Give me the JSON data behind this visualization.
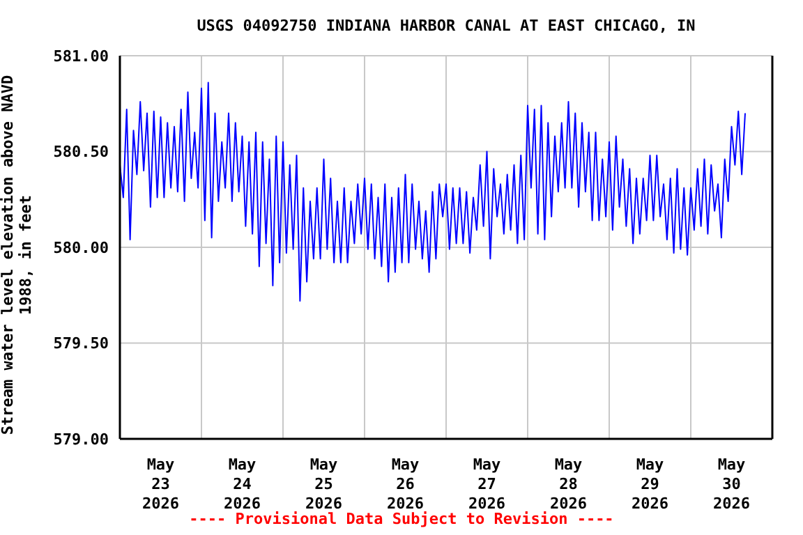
{
  "chart_data": {
    "type": "line",
    "title": "USGS 04092750 INDIANA HARBOR CANAL AT EAST CHICAGO, IN",
    "ylabel": "Stream water level elevation above NAVD 1988, in feet",
    "annotations": [
      "---- Provisional Data Subject to Revision ----"
    ],
    "xlim": [
      "2026-05-23T00:00",
      "2026-05-31T00:00"
    ],
    "xticks": [
      {
        "value": "2026-05-23T12:00",
        "label": "May\n23\n2026"
      },
      {
        "value": "2026-05-24T12:00",
        "label": "May\n24\n2026"
      },
      {
        "value": "2026-05-25T12:00",
        "label": "May\n25\n2026"
      },
      {
        "value": "2026-05-26T12:00",
        "label": "May\n26\n2026"
      },
      {
        "value": "2026-05-27T12:00",
        "label": "May\n27\n2026"
      },
      {
        "value": "2026-05-28T12:00",
        "label": "May\n28\n2026"
      },
      {
        "value": "2026-05-29T12:00",
        "label": "May\n29\n2026"
      },
      {
        "value": "2026-05-30T12:00",
        "label": "May\n30\n2026"
      },
      {
        "value": "2026-05-24T00:00",
        "label": null
      },
      {
        "value": "2026-05-25T00:00",
        "label": null
      },
      {
        "value": "2026-05-26T00:00",
        "label": null
      },
      {
        "value": "2026-05-27T00:00",
        "label": null
      },
      {
        "value": "2026-05-28T00:00",
        "label": null
      },
      {
        "value": "2026-05-29T00:00",
        "label": null
      },
      {
        "value": "2026-05-30T00:00",
        "label": null
      }
    ],
    "ylim": [
      579,
      581
    ],
    "yticks": [
      {
        "value": 579,
        "label": "579.00"
      },
      {
        "value": 579.5,
        "label": "579.50"
      },
      {
        "value": 580,
        "label": "580.00"
      },
      {
        "value": 580.5,
        "label": "580.50"
      },
      {
        "value": 581,
        "label": "581.00"
      }
    ],
    "grid": true,
    "marker": "none",
    "line_style": "solid",
    "x": [
      "2026-05-23T00:00",
      "2026-05-23T01:00",
      "2026-05-23T02:00",
      "2026-05-23T03:00",
      "2026-05-23T04:00",
      "2026-05-23T05:00",
      "2026-05-23T06:00",
      "2026-05-23T07:00",
      "2026-05-23T08:00",
      "2026-05-23T09:00",
      "2026-05-23T10:00",
      "2026-05-23T11:00",
      "2026-05-23T12:00",
      "2026-05-23T13:00",
      "2026-05-23T14:00",
      "2026-05-23T15:00",
      "2026-05-23T16:00",
      "2026-05-23T17:00",
      "2026-05-23T18:00",
      "2026-05-23T19:00",
      "2026-05-23T20:00",
      "2026-05-23T21:00",
      "2026-05-23T22:00",
      "2026-05-23T23:00",
      "2026-05-24T00:00",
      "2026-05-24T01:00",
      "2026-05-24T02:00",
      "2026-05-24T03:00",
      "2026-05-24T04:00",
      "2026-05-24T05:00",
      "2026-05-24T06:00",
      "2026-05-24T07:00",
      "2026-05-24T08:00",
      "2026-05-24T09:00",
      "2026-05-24T10:00",
      "2026-05-24T11:00",
      "2026-05-24T12:00",
      "2026-05-24T13:00",
      "2026-05-24T14:00",
      "2026-05-24T15:00",
      "2026-05-24T16:00",
      "2026-05-24T17:00",
      "2026-05-24T18:00",
      "2026-05-24T19:00",
      "2026-05-24T20:00",
      "2026-05-24T21:00",
      "2026-05-24T22:00",
      "2026-05-24T23:00",
      "2026-05-25T00:00",
      "2026-05-25T01:00",
      "2026-05-25T02:00",
      "2026-05-25T03:00",
      "2026-05-25T04:00",
      "2026-05-25T05:00",
      "2026-05-25T06:00",
      "2026-05-25T07:00",
      "2026-05-25T08:00",
      "2026-05-25T09:00",
      "2026-05-25T10:00",
      "2026-05-25T11:00",
      "2026-05-25T12:00",
      "2026-05-25T13:00",
      "2026-05-25T14:00",
      "2026-05-25T15:00",
      "2026-05-25T16:00",
      "2026-05-25T17:00",
      "2026-05-25T18:00",
      "2026-05-25T19:00",
      "2026-05-25T20:00",
      "2026-05-25T21:00",
      "2026-05-25T22:00",
      "2026-05-25T23:00",
      "2026-05-26T00:00",
      "2026-05-26T01:00",
      "2026-05-26T02:00",
      "2026-05-26T03:00",
      "2026-05-26T04:00",
      "2026-05-26T05:00",
      "2026-05-26T06:00",
      "2026-05-26T07:00",
      "2026-05-26T08:00",
      "2026-05-26T09:00",
      "2026-05-26T10:00",
      "2026-05-26T11:00",
      "2026-05-26T12:00",
      "2026-05-26T13:00",
      "2026-05-26T14:00",
      "2026-05-26T15:00",
      "2026-05-26T16:00",
      "2026-05-26T17:00",
      "2026-05-26T18:00",
      "2026-05-26T19:00",
      "2026-05-26T20:00",
      "2026-05-26T21:00",
      "2026-05-26T22:00",
      "2026-05-26T23:00",
      "2026-05-27T00:00",
      "2026-05-27T01:00",
      "2026-05-27T02:00",
      "2026-05-27T03:00",
      "2026-05-27T04:00",
      "2026-05-27T05:00",
      "2026-05-27T06:00",
      "2026-05-27T07:00",
      "2026-05-27T08:00",
      "2026-05-27T09:00",
      "2026-05-27T10:00",
      "2026-05-27T11:00",
      "2026-05-27T12:00",
      "2026-05-27T13:00",
      "2026-05-27T14:00",
      "2026-05-27T15:00",
      "2026-05-27T16:00",
      "2026-05-27T17:00",
      "2026-05-27T18:00",
      "2026-05-27T19:00",
      "2026-05-27T20:00",
      "2026-05-27T21:00",
      "2026-05-27T22:00",
      "2026-05-27T23:00",
      "2026-05-28T00:00",
      "2026-05-28T01:00",
      "2026-05-28T02:00",
      "2026-05-28T03:00",
      "2026-05-28T04:00",
      "2026-05-28T05:00",
      "2026-05-28T06:00",
      "2026-05-28T07:00",
      "2026-05-28T08:00",
      "2026-05-28T09:00",
      "2026-05-28T10:00",
      "2026-05-28T11:00",
      "2026-05-28T12:00",
      "2026-05-28T13:00",
      "2026-05-28T14:00",
      "2026-05-28T15:00",
      "2026-05-28T16:00",
      "2026-05-28T17:00",
      "2026-05-28T18:00",
      "2026-05-28T19:00",
      "2026-05-28T20:00",
      "2026-05-28T21:00",
      "2026-05-28T22:00",
      "2026-05-28T23:00",
      "2026-05-29T00:00",
      "2026-05-29T01:00",
      "2026-05-29T02:00",
      "2026-05-29T03:00",
      "2026-05-29T04:00",
      "2026-05-29T05:00",
      "2026-05-29T06:00",
      "2026-05-29T07:00",
      "2026-05-29T08:00",
      "2026-05-29T09:00",
      "2026-05-29T10:00",
      "2026-05-29T11:00",
      "2026-05-29T12:00",
      "2026-05-29T13:00",
      "2026-05-29T14:00",
      "2026-05-29T15:00",
      "2026-05-29T16:00",
      "2026-05-29T17:00",
      "2026-05-29T18:00",
      "2026-05-29T19:00",
      "2026-05-29T20:00",
      "2026-05-29T21:00",
      "2026-05-29T22:00",
      "2026-05-29T23:00",
      "2026-05-30T00:00",
      "2026-05-30T01:00",
      "2026-05-30T02:00",
      "2026-05-30T03:00",
      "2026-05-30T04:00",
      "2026-05-30T05:00",
      "2026-05-30T06:00",
      "2026-05-30T07:00",
      "2026-05-30T08:00",
      "2026-05-30T09:00",
      "2026-05-30T10:00",
      "2026-05-30T11:00",
      "2026-05-30T12:00",
      "2026-05-30T13:00",
      "2026-05-30T14:00",
      "2026-05-30T15:00",
      "2026-05-30T16:00"
    ],
    "series": [
      {
        "color": "#0000ff",
        "values": [
          580.43,
          580.26,
          580.72,
          580.04,
          580.61,
          580.38,
          580.76,
          580.4,
          580.7,
          580.21,
          580.71,
          580.26,
          580.68,
          580.26,
          580.65,
          580.31,
          580.63,
          580.29,
          580.72,
          580.24,
          580.81,
          580.36,
          580.6,
          580.31,
          580.83,
          580.14,
          580.86,
          580.05,
          580.7,
          580.24,
          580.55,
          580.31,
          580.7,
          580.24,
          580.65,
          580.29,
          580.58,
          580.11,
          580.55,
          580.07,
          580.6,
          579.9,
          580.55,
          580.02,
          580.46,
          579.8,
          580.58,
          579.92,
          580.55,
          579.97,
          580.43,
          579.99,
          580.48,
          579.72,
          580.31,
          579.82,
          580.24,
          579.94,
          580.31,
          579.94,
          580.46,
          579.99,
          580.36,
          579.92,
          580.24,
          579.92,
          580.31,
          579.92,
          580.24,
          580.02,
          580.33,
          580.07,
          580.36,
          579.99,
          580.33,
          579.94,
          580.26,
          579.9,
          580.33,
          579.82,
          580.26,
          579.87,
          580.31,
          579.92,
          580.38,
          579.92,
          580.33,
          579.99,
          580.24,
          579.94,
          580.19,
          579.87,
          580.29,
          579.94,
          580.33,
          580.16,
          580.33,
          579.99,
          580.31,
          580.02,
          580.31,
          580.02,
          580.29,
          579.97,
          580.26,
          580.09,
          580.43,
          580.11,
          580.5,
          579.94,
          580.41,
          580.16,
          580.33,
          580.07,
          580.38,
          580.09,
          580.43,
          580.02,
          580.48,
          580.04,
          580.74,
          580.31,
          580.72,
          580.07,
          580.74,
          580.04,
          580.65,
          580.16,
          580.58,
          580.29,
          580.65,
          580.31,
          580.76,
          580.31,
          580.7,
          580.21,
          580.65,
          580.29,
          580.6,
          580.14,
          580.6,
          580.14,
          580.46,
          580.16,
          580.55,
          580.09,
          580.58,
          580.21,
          580.46,
          580.11,
          580.41,
          580.02,
          580.36,
          580.07,
          580.36,
          580.14,
          580.48,
          580.14,
          580.48,
          580.16,
          580.33,
          580.04,
          580.36,
          579.97,
          580.41,
          579.99,
          580.31,
          579.96,
          580.31,
          580.09,
          580.41,
          580.11,
          580.46,
          580.07,
          580.43,
          580.19,
          580.33,
          580.05,
          580.46,
          580.24,
          580.63,
          580.43,
          580.71,
          580.38,
          580.7
        ]
      }
    ]
  }
}
